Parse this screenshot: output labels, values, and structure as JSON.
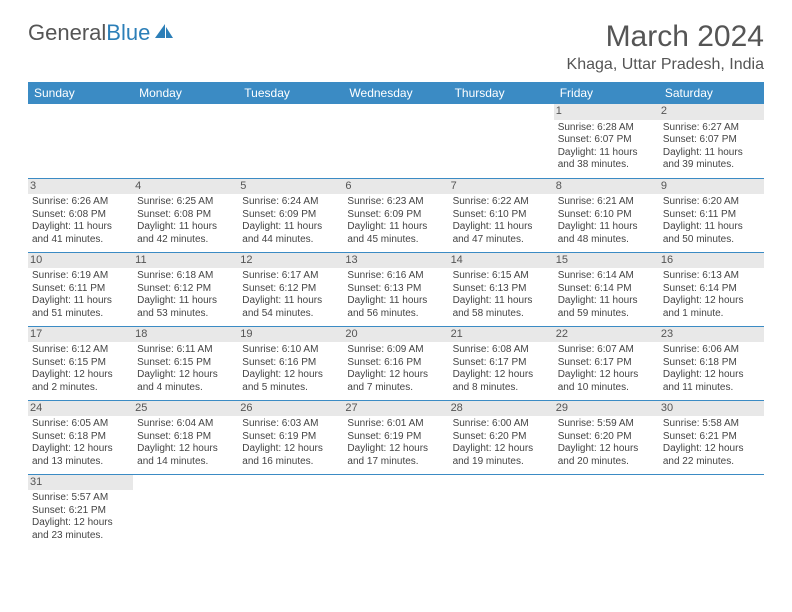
{
  "logo": {
    "text_a": "General",
    "text_b": "Blue"
  },
  "title": "March 2024",
  "location": "Khaga, Uttar Pradesh, India",
  "header_bg": "#3b8bc4",
  "days_of_week": [
    "Sunday",
    "Monday",
    "Tuesday",
    "Wednesday",
    "Thursday",
    "Friday",
    "Saturday"
  ],
  "cell_bg_daynum": "#e6e6e6",
  "border_color": "#3b8bc4",
  "text_color": "#444444",
  "weeks": [
    [
      null,
      null,
      null,
      null,
      null,
      {
        "n": "1",
        "sr": "Sunrise: 6:28 AM",
        "ss": "Sunset: 6:07 PM",
        "d1": "Daylight: 11 hours",
        "d2": "and 38 minutes."
      },
      {
        "n": "2",
        "sr": "Sunrise: 6:27 AM",
        "ss": "Sunset: 6:07 PM",
        "d1": "Daylight: 11 hours",
        "d2": "and 39 minutes."
      }
    ],
    [
      {
        "n": "3",
        "sr": "Sunrise: 6:26 AM",
        "ss": "Sunset: 6:08 PM",
        "d1": "Daylight: 11 hours",
        "d2": "and 41 minutes."
      },
      {
        "n": "4",
        "sr": "Sunrise: 6:25 AM",
        "ss": "Sunset: 6:08 PM",
        "d1": "Daylight: 11 hours",
        "d2": "and 42 minutes."
      },
      {
        "n": "5",
        "sr": "Sunrise: 6:24 AM",
        "ss": "Sunset: 6:09 PM",
        "d1": "Daylight: 11 hours",
        "d2": "and 44 minutes."
      },
      {
        "n": "6",
        "sr": "Sunrise: 6:23 AM",
        "ss": "Sunset: 6:09 PM",
        "d1": "Daylight: 11 hours",
        "d2": "and 45 minutes."
      },
      {
        "n": "7",
        "sr": "Sunrise: 6:22 AM",
        "ss": "Sunset: 6:10 PM",
        "d1": "Daylight: 11 hours",
        "d2": "and 47 minutes."
      },
      {
        "n": "8",
        "sr": "Sunrise: 6:21 AM",
        "ss": "Sunset: 6:10 PM",
        "d1": "Daylight: 11 hours",
        "d2": "and 48 minutes."
      },
      {
        "n": "9",
        "sr": "Sunrise: 6:20 AM",
        "ss": "Sunset: 6:11 PM",
        "d1": "Daylight: 11 hours",
        "d2": "and 50 minutes."
      }
    ],
    [
      {
        "n": "10",
        "sr": "Sunrise: 6:19 AM",
        "ss": "Sunset: 6:11 PM",
        "d1": "Daylight: 11 hours",
        "d2": "and 51 minutes."
      },
      {
        "n": "11",
        "sr": "Sunrise: 6:18 AM",
        "ss": "Sunset: 6:12 PM",
        "d1": "Daylight: 11 hours",
        "d2": "and 53 minutes."
      },
      {
        "n": "12",
        "sr": "Sunrise: 6:17 AM",
        "ss": "Sunset: 6:12 PM",
        "d1": "Daylight: 11 hours",
        "d2": "and 54 minutes."
      },
      {
        "n": "13",
        "sr": "Sunrise: 6:16 AM",
        "ss": "Sunset: 6:13 PM",
        "d1": "Daylight: 11 hours",
        "d2": "and 56 minutes."
      },
      {
        "n": "14",
        "sr": "Sunrise: 6:15 AM",
        "ss": "Sunset: 6:13 PM",
        "d1": "Daylight: 11 hours",
        "d2": "and 58 minutes."
      },
      {
        "n": "15",
        "sr": "Sunrise: 6:14 AM",
        "ss": "Sunset: 6:14 PM",
        "d1": "Daylight: 11 hours",
        "d2": "and 59 minutes."
      },
      {
        "n": "16",
        "sr": "Sunrise: 6:13 AM",
        "ss": "Sunset: 6:14 PM",
        "d1": "Daylight: 12 hours",
        "d2": "and 1 minute."
      }
    ],
    [
      {
        "n": "17",
        "sr": "Sunrise: 6:12 AM",
        "ss": "Sunset: 6:15 PM",
        "d1": "Daylight: 12 hours",
        "d2": "and 2 minutes."
      },
      {
        "n": "18",
        "sr": "Sunrise: 6:11 AM",
        "ss": "Sunset: 6:15 PM",
        "d1": "Daylight: 12 hours",
        "d2": "and 4 minutes."
      },
      {
        "n": "19",
        "sr": "Sunrise: 6:10 AM",
        "ss": "Sunset: 6:16 PM",
        "d1": "Daylight: 12 hours",
        "d2": "and 5 minutes."
      },
      {
        "n": "20",
        "sr": "Sunrise: 6:09 AM",
        "ss": "Sunset: 6:16 PM",
        "d1": "Daylight: 12 hours",
        "d2": "and 7 minutes."
      },
      {
        "n": "21",
        "sr": "Sunrise: 6:08 AM",
        "ss": "Sunset: 6:17 PM",
        "d1": "Daylight: 12 hours",
        "d2": "and 8 minutes."
      },
      {
        "n": "22",
        "sr": "Sunrise: 6:07 AM",
        "ss": "Sunset: 6:17 PM",
        "d1": "Daylight: 12 hours",
        "d2": "and 10 minutes."
      },
      {
        "n": "23",
        "sr": "Sunrise: 6:06 AM",
        "ss": "Sunset: 6:18 PM",
        "d1": "Daylight: 12 hours",
        "d2": "and 11 minutes."
      }
    ],
    [
      {
        "n": "24",
        "sr": "Sunrise: 6:05 AM",
        "ss": "Sunset: 6:18 PM",
        "d1": "Daylight: 12 hours",
        "d2": "and 13 minutes."
      },
      {
        "n": "25",
        "sr": "Sunrise: 6:04 AM",
        "ss": "Sunset: 6:18 PM",
        "d1": "Daylight: 12 hours",
        "d2": "and 14 minutes."
      },
      {
        "n": "26",
        "sr": "Sunrise: 6:03 AM",
        "ss": "Sunset: 6:19 PM",
        "d1": "Daylight: 12 hours",
        "d2": "and 16 minutes."
      },
      {
        "n": "27",
        "sr": "Sunrise: 6:01 AM",
        "ss": "Sunset: 6:19 PM",
        "d1": "Daylight: 12 hours",
        "d2": "and 17 minutes."
      },
      {
        "n": "28",
        "sr": "Sunrise: 6:00 AM",
        "ss": "Sunset: 6:20 PM",
        "d1": "Daylight: 12 hours",
        "d2": "and 19 minutes."
      },
      {
        "n": "29",
        "sr": "Sunrise: 5:59 AM",
        "ss": "Sunset: 6:20 PM",
        "d1": "Daylight: 12 hours",
        "d2": "and 20 minutes."
      },
      {
        "n": "30",
        "sr": "Sunrise: 5:58 AM",
        "ss": "Sunset: 6:21 PM",
        "d1": "Daylight: 12 hours",
        "d2": "and 22 minutes."
      }
    ],
    [
      {
        "n": "31",
        "sr": "Sunrise: 5:57 AM",
        "ss": "Sunset: 6:21 PM",
        "d1": "Daylight: 12 hours",
        "d2": "and 23 minutes."
      },
      null,
      null,
      null,
      null,
      null,
      null
    ]
  ]
}
